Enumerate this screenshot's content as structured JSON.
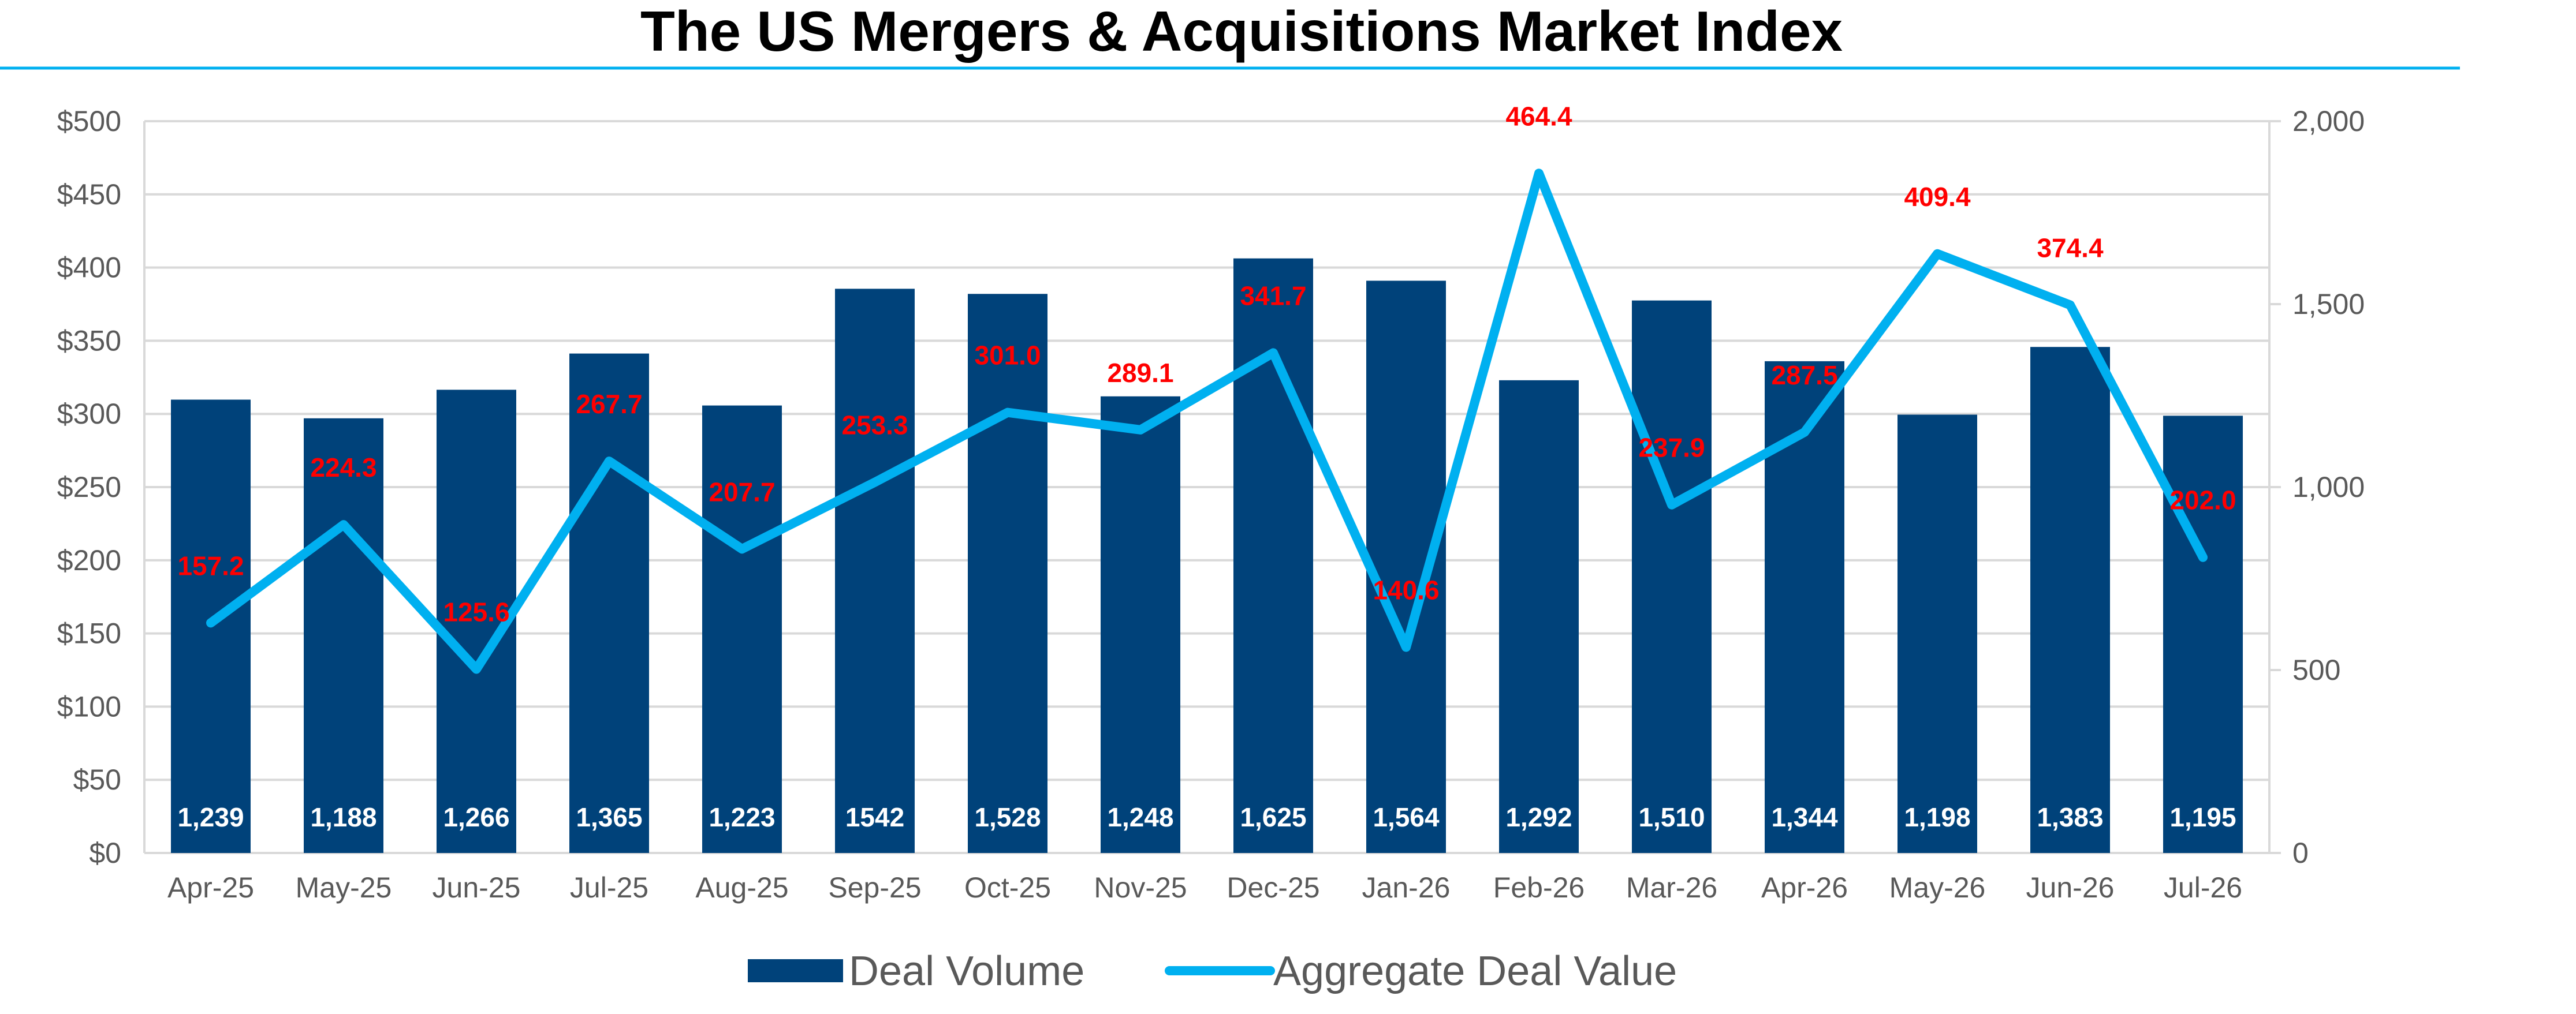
{
  "title": "The US Mergers & Acquisitions Market Index",
  "colors": {
    "bar": "#00427A",
    "line": "#00B0F0",
    "line_label": "#FF0000",
    "grid": "#D9D9D9",
    "axis_text": "#595959",
    "title_rule": "#00B0F0"
  },
  "chart_data": {
    "type": "bar",
    "title": "The US Mergers & Acquisitions Market Index",
    "categories": [
      "Apr-25",
      "May-25",
      "Jun-25",
      "Jul-25",
      "Aug-25",
      "Sep-25",
      "Oct-25",
      "Nov-25",
      "Dec-25",
      "Jan-26",
      "Feb-26",
      "Mar-26",
      "Apr-26",
      "May-26",
      "Jun-26",
      "Jul-26"
    ],
    "series": [
      {
        "name": "Deal Volume",
        "type": "bar",
        "axis": "right",
        "values": [
          1239,
          1188,
          1266,
          1365,
          1223,
          1542,
          1528,
          1248,
          1625,
          1564,
          1292,
          1510,
          1344,
          1198,
          1383,
          1195
        ],
        "labels": [
          "1,239",
          "1,188",
          "1,266",
          "1,365",
          "1,223",
          "1542",
          "1,528",
          "1,248",
          "1,625",
          "1,564",
          "1,292",
          "1,510",
          "1,344",
          "1,198",
          "1,383",
          "1,195"
        ]
      },
      {
        "name": "Aggregate Deal Value",
        "type": "line",
        "axis": "left",
        "values": [
          157.2,
          224.3,
          125.6,
          267.7,
          207.7,
          253.3,
          301.0,
          289.1,
          341.7,
          140.6,
          464.4,
          237.9,
          287.5,
          409.4,
          374.4,
          202.0
        ],
        "labels": [
          "157.2",
          "224.3",
          "125.6",
          "267.7",
          "207.7",
          "253.3",
          "301.0",
          "289.1",
          "341.7",
          "140.6",
          "464.4",
          "237.9",
          "287.5",
          "409.4",
          "374.4",
          "202.0"
        ]
      }
    ],
    "y_left": {
      "min": 0,
      "max": 500,
      "step": 50,
      "tick_labels": [
        "$0",
        "$50",
        "$100",
        "$150",
        "$200",
        "$250",
        "$300",
        "$350",
        "$400",
        "$450",
        "$500"
      ]
    },
    "y_right": {
      "min": 0,
      "max": 2000,
      "step": 500,
      "tick_labels": [
        "0",
        "500",
        "1,000",
        "1,500",
        "2,000"
      ]
    },
    "grid": true,
    "legend_position": "bottom",
    "legend": [
      "Deal Volume",
      "Aggregate Deal Value"
    ]
  }
}
